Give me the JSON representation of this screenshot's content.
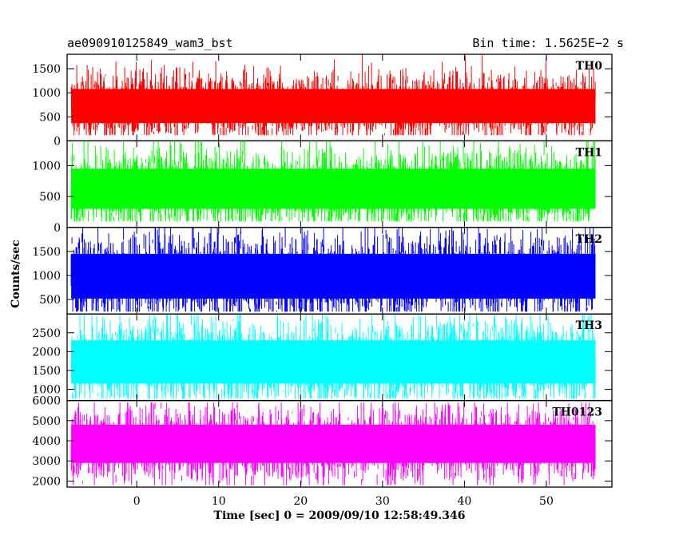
{
  "header": {
    "title_left": "ae090910125849_wam3_bst",
    "title_right": "Bin time: 1.5625E−2 s"
  },
  "chart_data": {
    "type": "line",
    "ylabel": "Counts/sec",
    "xlabel": "Time [sec] 0 = 2009/09/10 12:58:49.346",
    "xlim": [
      -8.5,
      58
    ],
    "x_ticks": [
      0,
      10,
      20,
      30,
      40,
      50
    ],
    "x_range": [
      -8,
      56
    ],
    "bin_time": 0.015625,
    "panels": [
      {
        "name": "TH0",
        "color": "#ff0000",
        "ylim": [
          0,
          1800
        ],
        "y_ticks": [
          0,
          500,
          1000,
          1500
        ],
        "min": 120,
        "max": 1800,
        "body_low": 370,
        "body_high": 1080
      },
      {
        "name": "TH1",
        "color": "#00ff00",
        "ylim": [
          0,
          1400
        ],
        "y_ticks": [
          0,
          500,
          1000
        ],
        "min": 100,
        "max": 1400,
        "body_low": 300,
        "body_high": 950
      },
      {
        "name": "TH2",
        "color": "#0000ff",
        "ylim": [
          200,
          2000
        ],
        "y_ticks": [
          500,
          1000,
          1500
        ],
        "min": 250,
        "max": 2000,
        "body_low": 520,
        "body_high": 1450
      },
      {
        "name": "TH3",
        "color": "#00ffff",
        "ylim": [
          700,
          3000
        ],
        "y_ticks": [
          1000,
          1500,
          2000,
          2500
        ],
        "min": 750,
        "max": 3000,
        "body_low": 1150,
        "body_high": 2300
      },
      {
        "name": "TH0123",
        "color": "#ff00ff",
        "ylim": [
          1700,
          6000
        ],
        "y_ticks": [
          2000,
          3000,
          4000,
          5000,
          6000
        ],
        "min": 1800,
        "max": 5900,
        "body_low": 2900,
        "body_high": 4800
      }
    ]
  }
}
